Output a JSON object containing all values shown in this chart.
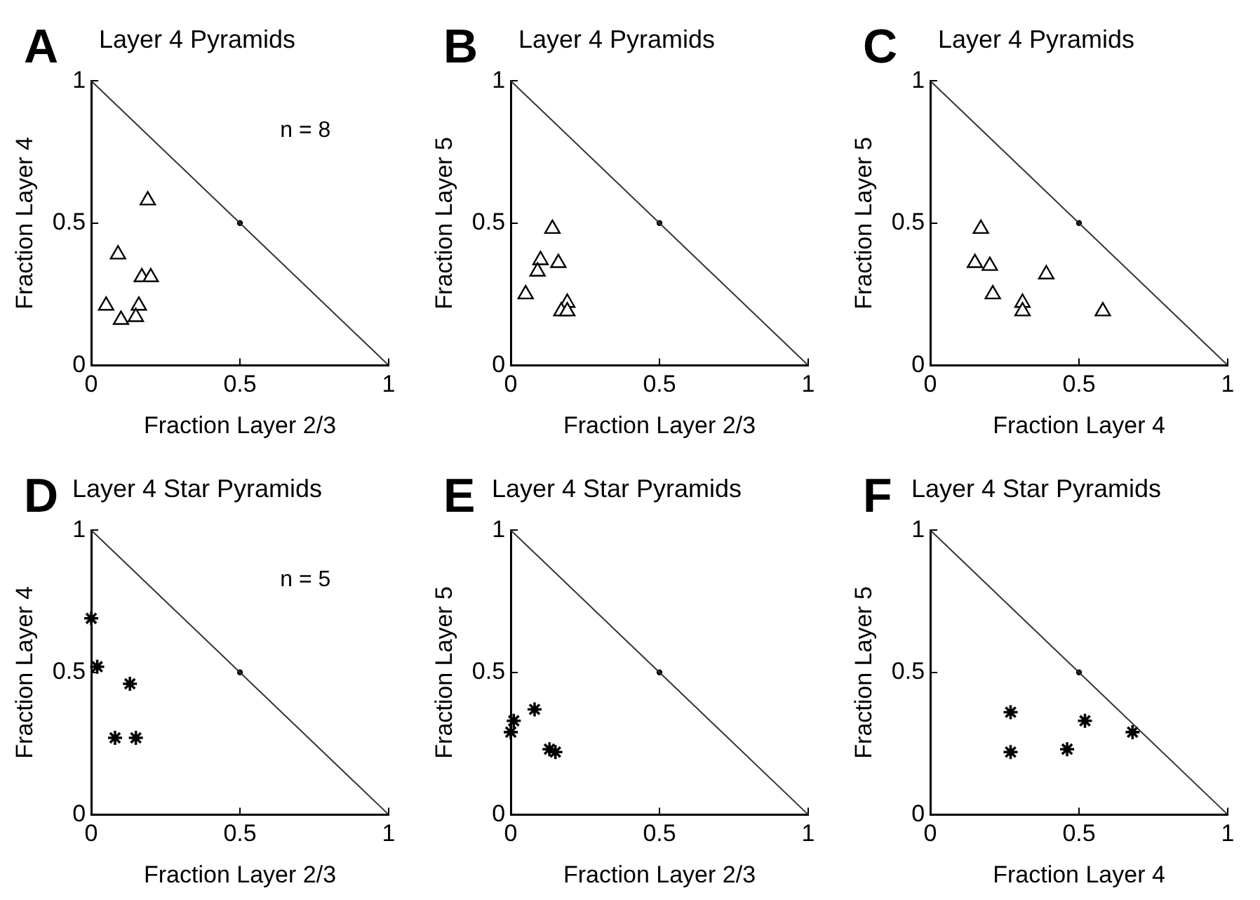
{
  "chart_data": [
    {
      "type": "scatter",
      "title": "Layer 4 Pyramids",
      "xlabel": "Fraction Layer 2/3",
      "ylabel": "Fraction Layer 4",
      "annotations": [
        "A",
        "n = 8"
      ],
      "xlim": [
        0,
        1
      ],
      "ylim": [
        0,
        1
      ],
      "xticks": [
        0,
        0.5,
        1
      ],
      "yticks": [
        0,
        0.5,
        1
      ],
      "grid": false,
      "legend": false,
      "series": [
        {
          "type": "line",
          "color": "#333333",
          "marker": "none",
          "x": [
            0,
            1
          ],
          "values": [
            1,
            0
          ]
        },
        {
          "type": "scatter",
          "color": "#000000",
          "marker": "circle",
          "x": [
            0.5
          ],
          "values": [
            0.5
          ]
        },
        {
          "type": "scatter",
          "color": "#000000",
          "marker": "triangle",
          "x": [
            0.19,
            0.09,
            0.17,
            0.2,
            0.05,
            0.16,
            0.1,
            0.15
          ],
          "values": [
            0.58,
            0.39,
            0.31,
            0.31,
            0.21,
            0.21,
            0.16,
            0.17
          ]
        }
      ]
    },
    {
      "type": "scatter",
      "title": "Layer 4 Pyramids",
      "xlabel": "Fraction Layer 2/3",
      "ylabel": "Fraction Layer 5",
      "annotations": [
        "B"
      ],
      "xlim": [
        0,
        1
      ],
      "ylim": [
        0,
        1
      ],
      "xticks": [
        0,
        0.5,
        1
      ],
      "yticks": [
        0,
        0.5,
        1
      ],
      "grid": false,
      "legend": false,
      "series": [
        {
          "type": "line",
          "color": "#333333",
          "marker": "none",
          "x": [
            0,
            1
          ],
          "values": [
            1,
            0
          ]
        },
        {
          "type": "scatter",
          "color": "#000000",
          "marker": "circle",
          "x": [
            0.5
          ],
          "values": [
            0.5
          ]
        },
        {
          "type": "scatter",
          "color": "#000000",
          "marker": "triangle",
          "x": [
            0.14,
            0.1,
            0.16,
            0.09,
            0.05,
            0.19,
            0.17,
            0.19
          ],
          "values": [
            0.48,
            0.37,
            0.36,
            0.33,
            0.25,
            0.22,
            0.19,
            0.19
          ]
        }
      ]
    },
    {
      "type": "scatter",
      "title": "Layer 4 Pyramids",
      "xlabel": "Fraction Layer 4",
      "ylabel": "Fraction Layer 5",
      "annotations": [
        "C"
      ],
      "xlim": [
        0,
        1
      ],
      "ylim": [
        0,
        1
      ],
      "xticks": [
        0,
        0.5,
        1
      ],
      "yticks": [
        0,
        0.5,
        1
      ],
      "grid": false,
      "legend": false,
      "series": [
        {
          "type": "line",
          "color": "#333333",
          "marker": "none",
          "x": [
            0,
            1
          ],
          "values": [
            1,
            0
          ]
        },
        {
          "type": "scatter",
          "color": "#000000",
          "marker": "circle",
          "x": [
            0.5
          ],
          "values": [
            0.5
          ]
        },
        {
          "type": "scatter",
          "color": "#000000",
          "marker": "triangle",
          "x": [
            0.17,
            0.15,
            0.2,
            0.21,
            0.31,
            0.31,
            0.39,
            0.58
          ],
          "values": [
            0.48,
            0.36,
            0.35,
            0.25,
            0.22,
            0.19,
            0.32,
            0.19
          ]
        }
      ]
    },
    {
      "type": "scatter",
      "title": "Layer 4 Star Pyramids",
      "xlabel": "Fraction Layer 2/3",
      "ylabel": "Fraction Layer 4",
      "annotations": [
        "D",
        "n = 5"
      ],
      "xlim": [
        0,
        1
      ],
      "ylim": [
        0,
        1
      ],
      "xticks": [
        0,
        0.5,
        1
      ],
      "yticks": [
        0,
        0.5,
        1
      ],
      "grid": false,
      "legend": false,
      "series": [
        {
          "type": "line",
          "color": "#333333",
          "marker": "none",
          "x": [
            0,
            1
          ],
          "values": [
            1,
            0
          ]
        },
        {
          "type": "scatter",
          "color": "#000000",
          "marker": "circle",
          "x": [
            0.5
          ],
          "values": [
            0.5
          ]
        },
        {
          "type": "scatter",
          "color": "#000000",
          "marker": "cross",
          "x": [
            0,
            0.02,
            0.13,
            0.08,
            0.15
          ],
          "values": [
            0.69,
            0.52,
            0.46,
            0.27,
            0.27
          ]
        }
      ]
    },
    {
      "type": "scatter",
      "title": "Layer 4 Star Pyramids",
      "xlabel": "Fraction Layer 2/3",
      "ylabel": "Fraction Layer 5",
      "annotations": [
        "E"
      ],
      "xlim": [
        0,
        1
      ],
      "ylim": [
        0,
        1
      ],
      "xticks": [
        0,
        0.5,
        1
      ],
      "yticks": [
        0,
        0.5,
        1
      ],
      "grid": false,
      "legend": false,
      "series": [
        {
          "type": "line",
          "color": "#333333",
          "marker": "none",
          "x": [
            0,
            1
          ],
          "values": [
            1,
            0
          ]
        },
        {
          "type": "scatter",
          "color": "#000000",
          "marker": "circle",
          "x": [
            0.5
          ],
          "values": [
            0.5
          ]
        },
        {
          "type": "scatter",
          "color": "#000000",
          "marker": "cross",
          "x": [
            0,
            0.01,
            0.08,
            0.13,
            0.15
          ],
          "values": [
            0.29,
            0.33,
            0.37,
            0.23,
            0.22
          ]
        }
      ]
    },
    {
      "type": "scatter",
      "title": "Layer 4 Star Pyramids",
      "xlabel": "Fraction Layer 4",
      "ylabel": "Fraction Layer 5",
      "annotations": [
        "F"
      ],
      "xlim": [
        0,
        1
      ],
      "ylim": [
        0,
        1
      ],
      "xticks": [
        0,
        0.5,
        1
      ],
      "yticks": [
        0,
        0.5,
        1
      ],
      "grid": false,
      "legend": false,
      "series": [
        {
          "type": "line",
          "color": "#333333",
          "marker": "none",
          "x": [
            0,
            1
          ],
          "values": [
            1,
            0
          ]
        },
        {
          "type": "scatter",
          "color": "#000000",
          "marker": "circle",
          "x": [
            0.5
          ],
          "values": [
            0.5
          ]
        },
        {
          "type": "scatter",
          "color": "#000000",
          "marker": "cross",
          "x": [
            0.27,
            0.27,
            0.46,
            0.52,
            0.68
          ],
          "values": [
            0.36,
            0.22,
            0.23,
            0.33,
            0.29
          ]
        }
      ]
    }
  ]
}
